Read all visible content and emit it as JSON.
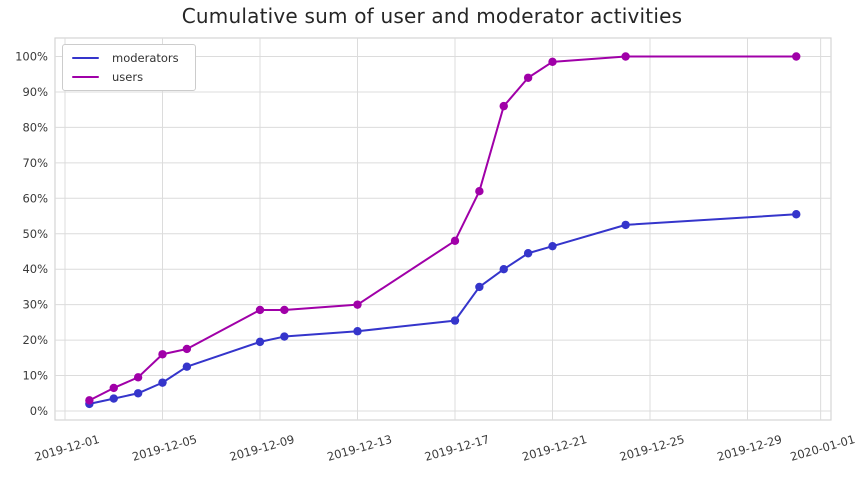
{
  "chart_data": {
    "type": "line",
    "title": "Cumulative sum of user and moderator activities",
    "x": [
      "2019-12-02",
      "2019-12-03",
      "2019-12-04",
      "2019-12-05",
      "2019-12-06",
      "2019-12-09",
      "2019-12-10",
      "2019-12-13",
      "2019-12-17",
      "2019-12-18",
      "2019-12-19",
      "2019-12-20",
      "2019-12-21",
      "2019-12-24",
      "2019-12-31"
    ],
    "series": [
      {
        "name": "moderators",
        "color": "#3535cb",
        "values": [
          2,
          3.5,
          5,
          8,
          12.5,
          19.5,
          21,
          22.5,
          25.5,
          35,
          40,
          44.5,
          46.5,
          52.5,
          55.5
        ]
      },
      {
        "name": "users",
        "color": "#a000a8",
        "values": [
          3,
          6.5,
          9.5,
          16,
          17.5,
          28.5,
          28.5,
          30,
          48,
          62,
          86,
          94,
          98.5,
          100,
          100
        ]
      }
    ],
    "x_tick_labels": [
      "2019-12-01",
      "2019-12-05",
      "2019-12-09",
      "2019-12-13",
      "2019-12-17",
      "2019-12-21",
      "2019-12-25",
      "2019-12-29",
      "2020-01-01"
    ],
    "y_tick_labels": [
      "0%",
      "10%",
      "20%",
      "30%",
      "40%",
      "50%",
      "60%",
      "70%",
      "80%",
      "90%",
      "100%"
    ],
    "ylim": [
      0,
      100
    ],
    "xlim": [
      "2019-12-01",
      "2020-01-01"
    ],
    "grid": true,
    "grid_color": "#dcdcdc",
    "spine_color": "#d4d4d4",
    "tick_label_color": "#3a3a3a",
    "background": "#ffffff",
    "legend_position": "upper-left",
    "marker": "circle",
    "x_tick_rotation_deg": -16
  }
}
